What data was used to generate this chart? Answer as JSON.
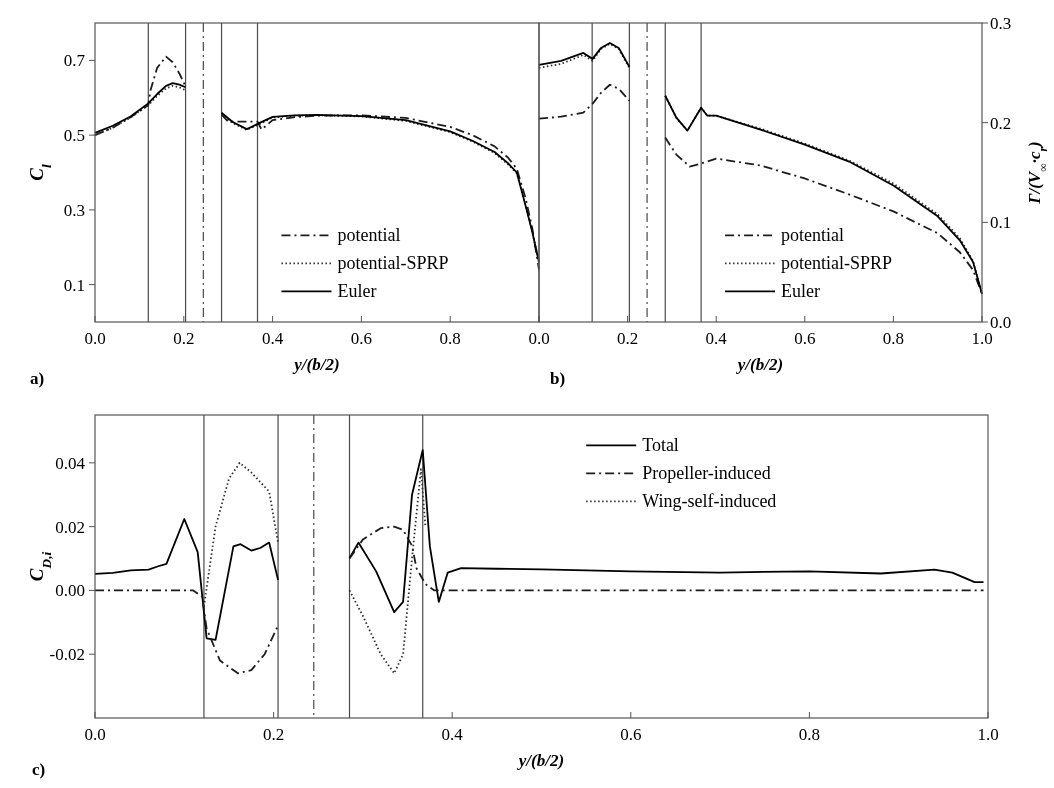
{
  "chart_data": [
    {
      "type": "line",
      "xlabel": "y/(b/2)",
      "ylabel": "C$_{l}$",
      "xlim": [
        0,
        1
      ],
      "ylim": [
        0,
        0.8
      ],
      "xticks": [
        {
          "value": 0,
          "label": "0.0"
        },
        {
          "value": 0.2,
          "label": "0.2"
        },
        {
          "value": 0.4,
          "label": "0.4"
        },
        {
          "value": 0.6,
          "label": "0.6"
        },
        {
          "value": 0.8,
          "label": "0.8"
        },
        {
          "value": 1,
          "label": null
        }
      ],
      "yticks": [
        0.1,
        0.3,
        0.5,
        0.7
      ],
      "legend": "bottom",
      "annotations": [
        "a)"
      ],
      "ref_lines": [
        {
          "axis": "x",
          "value": 0.12,
          "color": "#4a4a4a",
          "line_style": "solid"
        },
        {
          "axis": "x",
          "value": 0.204,
          "color": "#4a4a4a",
          "line_style": "solid"
        },
        {
          "axis": "x",
          "value": 0.244,
          "color": "#4a4a4a",
          "line_style": "dashdot"
        },
        {
          "axis": "x",
          "value": 0.285,
          "color": "#4a4a4a",
          "line_style": "solid"
        },
        {
          "axis": "x",
          "value": 0.366,
          "color": "#4a4a4a",
          "line_style": "solid"
        }
      ],
      "series": [
        {
          "name": "potential",
          "color": "#1c1c1c",
          "line_style": "dashdot",
          "x": [
            0,
            0.04,
            0.08,
            0.12,
            0.125,
            0.14,
            0.16,
            0.175,
            0.19,
            0.204,
            0.245,
            0.285,
            0.3,
            0.366,
            0.375,
            0.4,
            0.45,
            0.5,
            0.6,
            0.7,
            0.8,
            0.85,
            0.9,
            0.93,
            0.95,
            0.97,
            0.985,
            1.0
          ],
          "values": [
            0.5,
            0.52,
            0.548,
            0.58,
            0.62,
            0.68,
            0.71,
            0.695,
            0.665,
            0.63,
            null,
            0.555,
            0.536,
            0.536,
            0.515,
            0.54,
            0.548,
            0.552,
            0.553,
            0.546,
            0.522,
            0.5,
            0.47,
            0.44,
            0.41,
            0.33,
            0.25,
            0.14
          ]
        },
        {
          "name": "potential-SPRP",
          "color": "#2e2e2e",
          "line_style": "dotted",
          "x": [
            0,
            0.04,
            0.08,
            0.12,
            0.14,
            0.16,
            0.175,
            0.19,
            0.204,
            0.245,
            0.285,
            0.31,
            0.342,
            0.366,
            0.4,
            0.45,
            0.5,
            0.6,
            0.7,
            0.8,
            0.85,
            0.9,
            0.93,
            0.95,
            0.97,
            0.985,
            1.0
          ],
          "values": [
            0.5,
            0.52,
            0.547,
            0.58,
            0.605,
            0.625,
            0.632,
            0.628,
            0.62,
            null,
            0.557,
            0.532,
            0.514,
            0.527,
            0.547,
            0.552,
            0.553,
            0.55,
            0.538,
            0.508,
            0.483,
            0.452,
            0.422,
            0.398,
            0.31,
            0.24,
            0.16
          ]
        },
        {
          "name": "Euler",
          "color": "#000000",
          "line_style": "solid",
          "x": [
            0,
            0.04,
            0.08,
            0.12,
            0.14,
            0.16,
            0.175,
            0.19,
            0.204,
            0.245,
            0.285,
            0.31,
            0.342,
            0.366,
            0.4,
            0.45,
            0.5,
            0.6,
            0.7,
            0.8,
            0.85,
            0.9,
            0.93,
            0.95,
            0.97,
            0.985,
            1.0
          ],
          "values": [
            0.506,
            0.525,
            0.55,
            0.585,
            0.61,
            0.632,
            0.639,
            0.635,
            0.628,
            null,
            0.56,
            0.535,
            0.516,
            0.53,
            0.549,
            0.553,
            0.554,
            0.551,
            0.54,
            0.51,
            0.485,
            0.455,
            0.425,
            0.4,
            0.31,
            0.24,
            0.16
          ]
        }
      ]
    },
    {
      "type": "line",
      "xlabel": "y/(b/2)",
      "y2label": "Γ/(V$_{∞}$·c$_{r}$)",
      "xlim": [
        0,
        1
      ],
      "y2lim": [
        0,
        0.3
      ],
      "xticks": [
        {
          "value": 0,
          "label": "0.0"
        },
        {
          "value": 0.2,
          "label": "0.2"
        },
        {
          "value": 0.4,
          "label": "0.4"
        },
        {
          "value": 0.6,
          "label": "0.6"
        },
        {
          "value": 0.8,
          "label": "0.8"
        },
        {
          "value": 1,
          "label": "1.0"
        }
      ],
      "y2ticks": [
        {
          "value": 0,
          "label": "0.0"
        },
        0.1,
        0.2,
        0.3
      ],
      "legend": "bottom",
      "annotations": [
        "b)"
      ],
      "ref_lines": [
        {
          "axis": "x",
          "value": 0.12,
          "color": "#4a4a4a",
          "line_style": "solid"
        },
        {
          "axis": "x",
          "value": 0.204,
          "color": "#4a4a4a",
          "line_style": "solid"
        },
        {
          "axis": "x",
          "value": 0.244,
          "color": "#4a4a4a",
          "line_style": "dashdot"
        },
        {
          "axis": "x",
          "value": 0.285,
          "color": "#4a4a4a",
          "line_style": "solid"
        },
        {
          "axis": "x",
          "value": 0.366,
          "color": "#4a4a4a",
          "line_style": "solid"
        }
      ],
      "series": [
        {
          "name": "potential",
          "color": "#1c1c1c",
          "line_style": "dashdot",
          "axis": "y2",
          "x": [
            0,
            0.05,
            0.1,
            0.121,
            0.14,
            0.16,
            0.18,
            0.204,
            0.245,
            0.285,
            0.31,
            0.34,
            0.366,
            0.4,
            0.5,
            0.6,
            0.7,
            0.8,
            0.9,
            0.95,
            0.98,
            1.0
          ],
          "values": [
            0.204,
            0.206,
            0.21,
            0.219,
            0.23,
            0.238,
            0.234,
            0.222,
            null,
            0.185,
            0.168,
            0.156,
            0.159,
            0.164,
            0.157,
            0.144,
            0.128,
            0.111,
            0.089,
            0.07,
            0.052,
            0.028
          ]
        },
        {
          "name": "potential-SPRP",
          "color": "#2e2e2e",
          "line_style": "dotted",
          "axis": "y2",
          "x": [
            0,
            0.05,
            0.1,
            0.121,
            0.14,
            0.16,
            0.18,
            0.204,
            0.245,
            0.285,
            0.31,
            0.335,
            0.366,
            0.38,
            0.4,
            0.5,
            0.6,
            0.7,
            0.8,
            0.9,
            0.95,
            0.98,
            1.0
          ],
          "values": [
            0.255,
            0.259,
            0.268,
            0.262,
            0.274,
            0.279,
            0.274,
            0.255,
            null,
            0.227,
            0.205,
            0.192,
            0.215,
            0.207,
            0.207,
            0.194,
            0.179,
            0.162,
            0.139,
            0.108,
            0.084,
            0.061,
            0.028
          ]
        },
        {
          "name": "Euler",
          "color": "#000000",
          "line_style": "solid",
          "axis": "y2",
          "x": [
            0,
            0.05,
            0.1,
            0.121,
            0.14,
            0.16,
            0.18,
            0.204,
            0.245,
            0.285,
            0.31,
            0.335,
            0.366,
            0.38,
            0.4,
            0.5,
            0.6,
            0.7,
            0.8,
            0.9,
            0.95,
            0.98,
            1.0
          ],
          "values": [
            0.258,
            0.262,
            0.27,
            0.264,
            0.275,
            0.28,
            0.275,
            0.256,
            null,
            0.227,
            0.205,
            0.192,
            0.215,
            0.207,
            0.207,
            0.193,
            0.178,
            0.161,
            0.137,
            0.106,
            0.082,
            0.06,
            0.028
          ]
        }
      ]
    },
    {
      "type": "line",
      "xlabel": "y/(b/2)",
      "ylabel": "C$_{D,i}$",
      "xlim": [
        0,
        1
      ],
      "ylim": [
        -0.04,
        0.055
      ],
      "xticks": [
        {
          "value": 0,
          "label": "0.0"
        },
        {
          "value": 0.2,
          "label": "0.2"
        },
        {
          "value": 0.4,
          "label": "0.4"
        },
        {
          "value": 0.6,
          "label": "0.6"
        },
        {
          "value": 0.8,
          "label": "0.8"
        },
        {
          "value": 1,
          "label": "1.0"
        }
      ],
      "yticks": [
        -0.02,
        {
          "value": 0,
          "label": "0.00"
        },
        0.02,
        0.04
      ],
      "legend": "top",
      "annotations": [
        "c)"
      ],
      "ref_lines": [
        {
          "axis": "x",
          "value": 0.122,
          "color": "#4a4a4a",
          "line_style": "solid"
        },
        {
          "axis": "x",
          "value": 0.205,
          "color": "#4a4a4a",
          "line_style": "solid"
        },
        {
          "axis": "x",
          "value": 0.245,
          "color": "#4a4a4a",
          "line_style": "dashdot"
        },
        {
          "axis": "x",
          "value": 0.285,
          "color": "#4a4a4a",
          "line_style": "solid"
        },
        {
          "axis": "x",
          "value": 0.367,
          "color": "#4a4a4a",
          "line_style": "solid"
        }
      ],
      "series": [
        {
          "name": "Total",
          "color": "#000000",
          "line_style": "solid",
          "x": [
            0,
            0.02,
            0.04,
            0.06,
            0.07,
            0.08,
            0.1,
            0.115,
            0.125,
            0.135,
            0.155,
            0.163,
            0.175,
            0.185,
            0.195,
            0.205,
            0.245,
            0.285,
            0.295,
            0.315,
            0.335,
            0.345,
            0.355,
            0.367,
            0.375,
            0.385,
            0.395,
            0.41,
            0.45,
            0.5,
            0.6,
            0.7,
            0.8,
            0.88,
            0.94,
            0.96,
            0.985,
            0.995
          ],
          "values": [
            0.0052,
            0.0055,
            0.0063,
            0.0065,
            0.0075,
            0.0083,
            0.0224,
            0.012,
            -0.015,
            -0.0155,
            0.0138,
            0.0145,
            0.0125,
            0.0133,
            0.015,
            0.0033,
            null,
            0.0101,
            0.015,
            0.0059,
            -0.0068,
            -0.0036,
            0.03,
            0.044,
            0.0138,
            -0.0036,
            0.0056,
            0.007,
            0.0068,
            0.0066,
            0.006,
            0.0056,
            0.006,
            0.0053,
            0.0065,
            0.0056,
            0.0026,
            0.0026
          ]
        },
        {
          "name": "Propeller-induced",
          "color": "#1c1c1c",
          "line_style": "dashdot",
          "x": [
            0,
            0.11,
            0.12,
            0.125,
            0.14,
            0.16,
            0.175,
            0.19,
            0.205,
            0.245,
            0.285,
            0.3,
            0.32,
            0.335,
            0.345,
            0.355,
            0.36,
            0.37,
            0.38,
            0.995
          ],
          "values": [
            0,
            0,
            -0.002,
            -0.012,
            -0.022,
            -0.026,
            -0.025,
            -0.02,
            -0.011,
            null,
            0.01,
            0.016,
            0.0195,
            0.02,
            0.019,
            0.014,
            0.007,
            0.002,
            0,
            0
          ]
        },
        {
          "name": "Wing-self-induced",
          "color": "#2e2e2e",
          "line_style": "dotted",
          "x": [
            0.122,
            0.135,
            0.15,
            0.162,
            0.175,
            0.195,
            0.205,
            0.245,
            0.285,
            0.3,
            0.32,
            0.335,
            0.345,
            0.355,
            0.365,
            0.37
          ],
          "values": [
            -0.005,
            0.02,
            0.035,
            0.04,
            0.037,
            0.031,
            0.015,
            null,
            0,
            -0.008,
            -0.02,
            -0.026,
            -0.02,
            0.01,
            0.038,
            0.02
          ]
        }
      ]
    }
  ]
}
